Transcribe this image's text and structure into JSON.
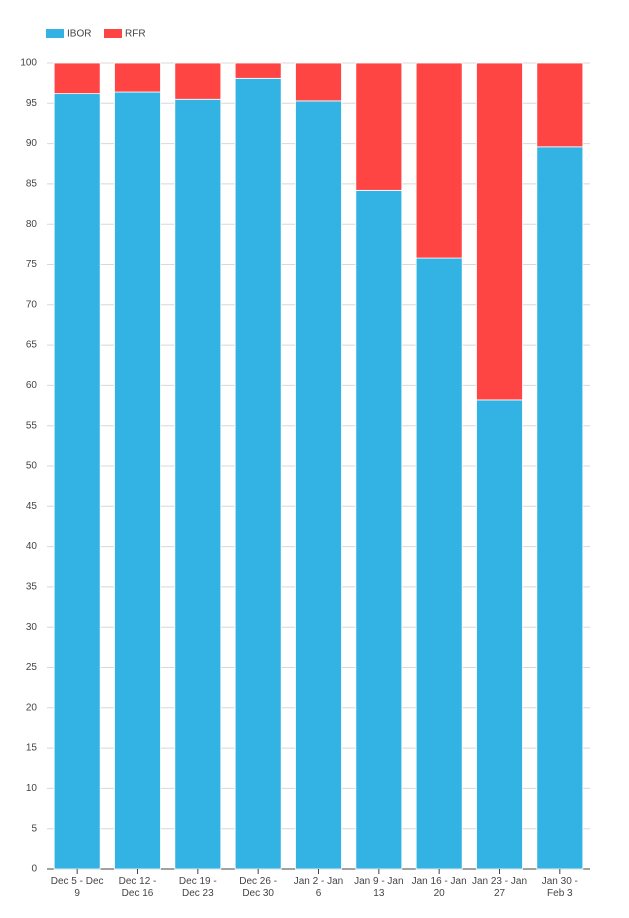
{
  "chart_data": {
    "type": "stacked_bar",
    "categories": [
      "Dec 5 - Dec 9",
      "Dec 12 - Dec 16",
      "Dec 19 - Dec 23",
      "Dec 26 - Dec 30",
      "Jan 2 - Jan 6",
      "Jan 9 - Jan 13",
      "Jan 16 - Jan 20",
      "Jan 23 - Jan 27",
      "Jan 30 - Feb 3"
    ],
    "series": [
      {
        "name": "IBOR",
        "color": "#33b3e3",
        "values": [
          96.2,
          96.4,
          95.5,
          98.1,
          95.3,
          84.2,
          75.8,
          58.2,
          89.6
        ]
      },
      {
        "name": "RFR",
        "color": "#ff4444",
        "values": [
          3.8,
          3.6,
          4.5,
          1.9,
          4.7,
          15.8,
          24.2,
          41.8,
          10.4
        ]
      }
    ],
    "ylim": [
      0,
      100
    ],
    "yticks": [
      0,
      5,
      10,
      15,
      20,
      25,
      30,
      35,
      40,
      45,
      50,
      55,
      60,
      65,
      70,
      75,
      80,
      85,
      90,
      95,
      100
    ],
    "grid": true,
    "legend": "top-left"
  }
}
